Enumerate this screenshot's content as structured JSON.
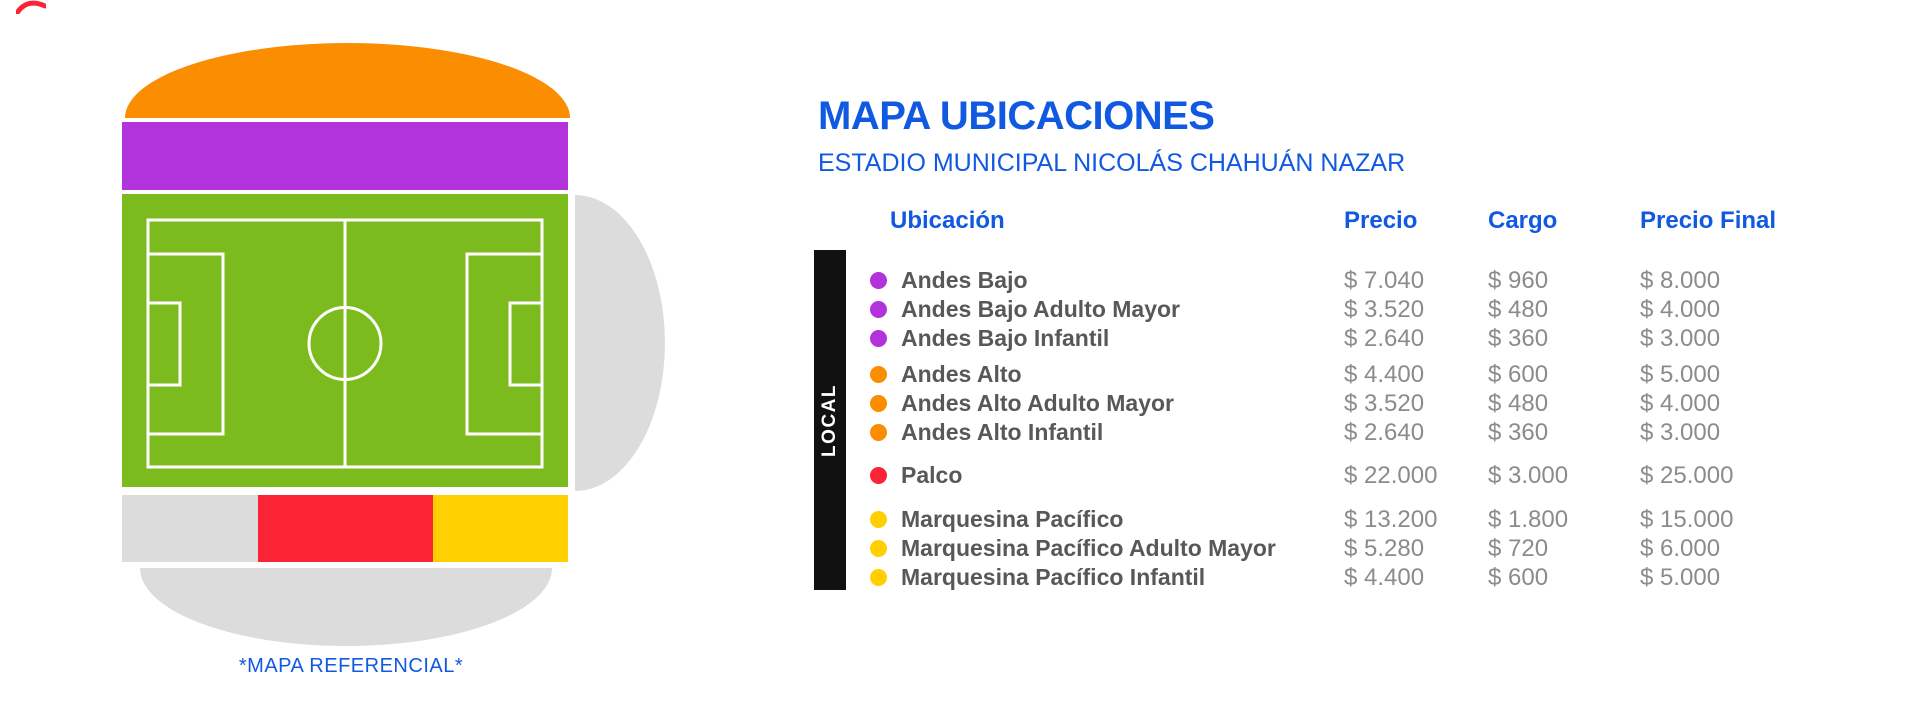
{
  "header": {
    "title": "MAPA UBICACIONES",
    "subtitle": "ESTADIO MUNICIPAL NICOLÁS CHAHUÁN NAZAR"
  },
  "map": {
    "caption": "*MAPA REFERENCIAL*",
    "sections": [
      {
        "name": "Andes Alto",
        "shape": "top-dome",
        "color": "#FB8D00"
      },
      {
        "name": "Andes Bajo",
        "shape": "upper-band",
        "color": "#B232DC"
      },
      {
        "name": "Cancha",
        "shape": "field",
        "color": "#7CBB1E"
      },
      {
        "name": "Tribuna lateral referencial",
        "shape": "right-curve",
        "color": "#DCDCDC"
      },
      {
        "name": "Tribuna inferior referencial",
        "shape": "lower-left-band",
        "color": "#DCDCDC"
      },
      {
        "name": "Palco",
        "shape": "lower-band-center",
        "color": "#FC2334"
      },
      {
        "name": "Marquesina Pacífico",
        "shape": "lower-band-right",
        "color": "#FFCF00"
      },
      {
        "name": "Galería inferior referencial",
        "shape": "bottom-arc",
        "color": "#DCDCDC"
      }
    ]
  },
  "table": {
    "side_label": "LOCAL",
    "columns": [
      "Ubicación",
      "Precio",
      "Cargo",
      "Precio Final"
    ],
    "groups": [
      {
        "dot_color": "#B232DC",
        "rows": [
          {
            "name": "Andes Bajo",
            "precio": "$ 7.040",
            "cargo": "$ 960",
            "final": "$ 8.000"
          },
          {
            "name": "Andes Bajo Adulto Mayor",
            "precio": "$ 3.520",
            "cargo": "$ 480",
            "final": "$ 4.000"
          },
          {
            "name": "Andes Bajo Infantil",
            "precio": "$ 2.640",
            "cargo": "$ 360",
            "final": "$ 3.000"
          }
        ]
      },
      {
        "dot_color": "#FB8D00",
        "rows": [
          {
            "name": "Andes Alto",
            "precio": "$ 4.400",
            "cargo": "$ 600",
            "final": "$ 5.000"
          },
          {
            "name": "Andes Alto Adulto Mayor",
            "precio": "$ 3.520",
            "cargo": "$ 480",
            "final": "$ 4.000"
          },
          {
            "name": "Andes Alto Infantil",
            "precio": "$ 2.640",
            "cargo": "$ 360",
            "final": "$ 3.000"
          }
        ]
      },
      {
        "dot_color": "#FC2334",
        "rows": [
          {
            "name": "Palco",
            "precio": "$ 22.000",
            "cargo": "$ 3.000",
            "final": "$ 25.000"
          }
        ]
      },
      {
        "dot_color": "#FFCF00",
        "rows": [
          {
            "name": "Marquesina Pacífico",
            "precio": "$ 13.200",
            "cargo": "$ 1.800",
            "final": "$ 15.000"
          },
          {
            "name": "Marquesina Pacífico Adulto Mayor",
            "precio": "$ 5.280",
            "cargo": "$ 720",
            "final": "$ 6.000"
          },
          {
            "name": "Marquesina Pacífico Infantil",
            "precio": "$ 4.400",
            "cargo": "$ 600",
            "final": "$ 5.000"
          }
        ]
      }
    ]
  },
  "colors": {
    "blue": "#1159E1",
    "label_gray": "#57585A",
    "value_gray": "#8A8B8D",
    "map_gray": "#DCDCDC",
    "black_bar": "#111111",
    "andes_bajo_purple": "#B232DC",
    "andes_alto_orange": "#FB8D00",
    "palco_red": "#FC2334",
    "marquesina_yellow": "#FFCF00",
    "field_green": "#7CBB1E",
    "pitch_lines": "#FFFFFF"
  }
}
